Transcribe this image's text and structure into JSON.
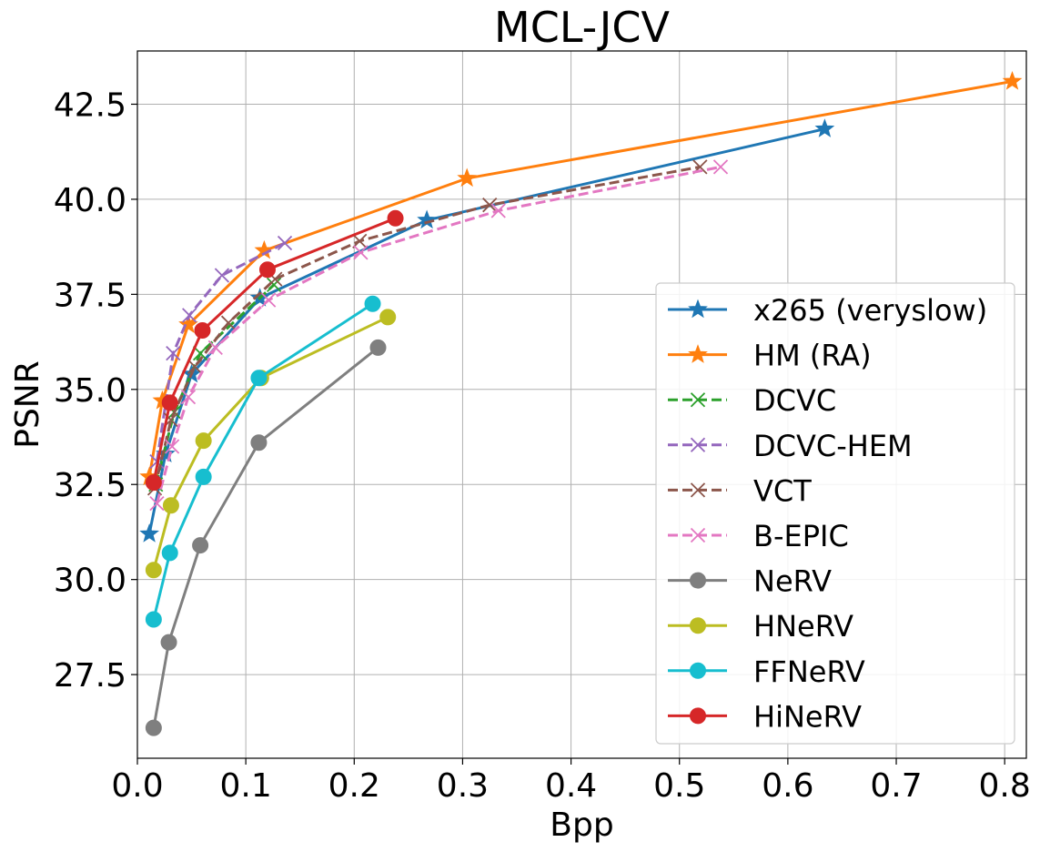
{
  "chart_data": {
    "type": "line",
    "title": "MCL-JCV",
    "xlabel": "Bpp",
    "ylabel": "PSNR",
    "xlim": [
      0.0,
      0.82
    ],
    "ylim": [
      25.3,
      43.9
    ],
    "xticks": [
      0.0,
      0.1,
      0.2,
      0.3,
      0.4,
      0.5,
      0.6,
      0.7,
      0.8
    ],
    "xtick_labels": [
      "0.0",
      "0.1",
      "0.2",
      "0.3",
      "0.4",
      "0.5",
      "0.6",
      "0.7",
      "0.8"
    ],
    "yticks": [
      27.5,
      30.0,
      32.5,
      35.0,
      37.5,
      40.0,
      42.5
    ],
    "ytick_labels": [
      "27.5",
      "30.0",
      "32.5",
      "35.0",
      "37.5",
      "40.0",
      "42.5"
    ],
    "grid": true,
    "legend_position": "lower-right",
    "series": [
      {
        "name": "x265 (veryslow)",
        "color": "#1f77b4",
        "dash": "solid",
        "marker": "star",
        "x": [
          0.011,
          0.026,
          0.05,
          0.113,
          0.267,
          0.634
        ],
        "y": [
          31.2,
          33.3,
          35.4,
          37.4,
          39.45,
          41.85
        ]
      },
      {
        "name": "HM (RA)",
        "color": "#ff7f0e",
        "dash": "solid",
        "marker": "star",
        "x": [
          0.011,
          0.023,
          0.047,
          0.117,
          0.304,
          0.807
        ],
        "y": [
          32.7,
          34.7,
          36.7,
          38.65,
          40.55,
          43.1
        ]
      },
      {
        "name": "DCVC",
        "color": "#2ca02c",
        "dash": "dashed",
        "marker": "x",
        "x": [
          0.017,
          0.034,
          0.058,
          0.126
        ],
        "y": [
          32.5,
          34.4,
          35.95,
          37.75
        ]
      },
      {
        "name": "DCVC-HEM",
        "color": "#9467bd",
        "dash": "dashed",
        "marker": "x",
        "x": [
          0.018,
          0.033,
          0.048,
          0.078,
          0.136
        ],
        "y": [
          33.1,
          35.95,
          36.95,
          38.0,
          38.85
        ]
      },
      {
        "name": "VCT",
        "color": "#8c564b",
        "dash": "dashed",
        "marker": "x",
        "x": [
          0.016,
          0.031,
          0.053,
          0.084,
          0.127,
          0.205,
          0.325,
          0.519
        ],
        "y": [
          32.4,
          34.2,
          35.6,
          36.75,
          37.9,
          38.9,
          39.85,
          40.85
        ]
      },
      {
        "name": "B-EPIC",
        "color": "#e377c2",
        "dash": "dashed",
        "marker": "x",
        "x": [
          0.018,
          0.032,
          0.047,
          0.072,
          0.121,
          0.206,
          0.333,
          0.538
        ],
        "y": [
          32.0,
          33.5,
          34.8,
          36.1,
          37.35,
          38.6,
          39.7,
          40.85
        ]
      },
      {
        "name": "NeRV",
        "color": "#7f7f7f",
        "dash": "solid",
        "marker": "circle",
        "x": [
          0.015,
          0.029,
          0.058,
          0.112,
          0.222
        ],
        "y": [
          26.1,
          28.35,
          30.9,
          33.6,
          36.1
        ]
      },
      {
        "name": "HNeRV",
        "color": "#bcbd22",
        "dash": "solid",
        "marker": "circle",
        "x": [
          0.015,
          0.031,
          0.061,
          0.114,
          0.231
        ],
        "y": [
          30.25,
          31.95,
          33.65,
          35.3,
          36.9
        ]
      },
      {
        "name": "FFNeRV",
        "color": "#17becf",
        "dash": "solid",
        "marker": "circle",
        "x": [
          0.015,
          0.03,
          0.061,
          0.112,
          0.217
        ],
        "y": [
          28.95,
          30.7,
          32.7,
          35.3,
          37.25
        ]
      },
      {
        "name": "HiNeRV",
        "color": "#d62728",
        "dash": "solid",
        "marker": "circle",
        "x": [
          0.015,
          0.03,
          0.06,
          0.12,
          0.238
        ],
        "y": [
          32.55,
          34.65,
          36.55,
          38.15,
          39.5
        ]
      }
    ]
  }
}
